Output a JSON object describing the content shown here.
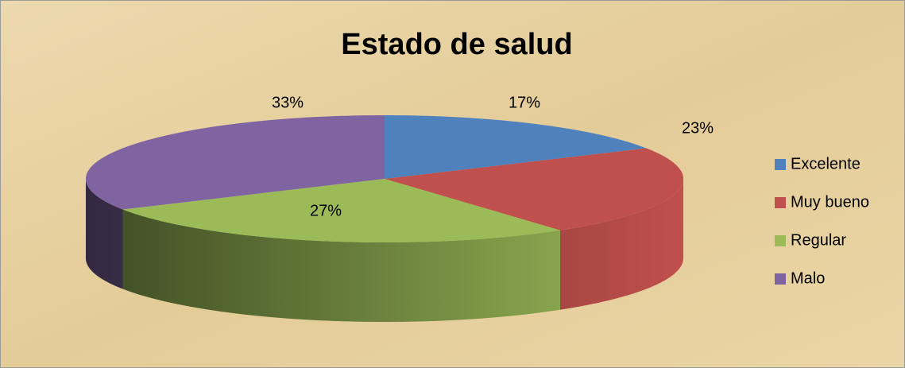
{
  "chart_data": {
    "type": "pie",
    "title": "Estado de salud",
    "categories": [
      "Excelente",
      "Muy bueno",
      "Regular",
      "Malo"
    ],
    "values": [
      17,
      23,
      27,
      33
    ],
    "value_labels": [
      "17%",
      "23%",
      "27%",
      "33%"
    ],
    "colors": [
      "#4f81bd",
      "#c0504d",
      "#9bbb59",
      "#8064a2"
    ],
    "legend": "right"
  }
}
